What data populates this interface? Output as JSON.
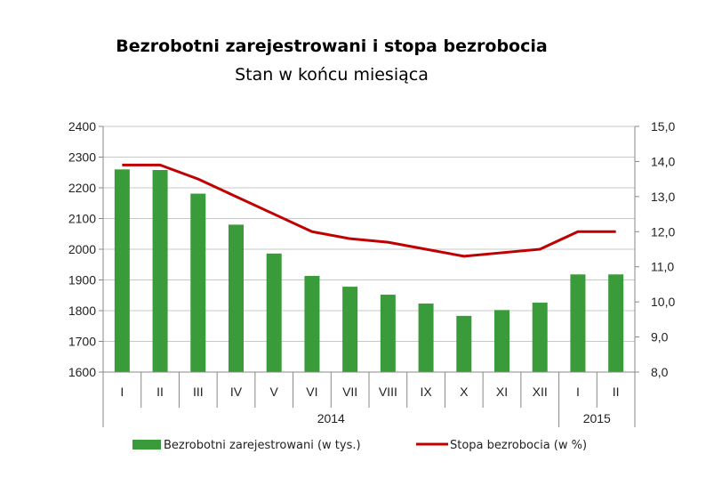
{
  "chart_data": {
    "type": "bar+line",
    "title": "Bezrobotni zarejestrowani i stopa bezrobocia",
    "subtitle": "Stan w końcu miesiąca",
    "categories": [
      "I",
      "II",
      "III",
      "IV",
      "V",
      "VI",
      "VII",
      "VIII",
      "IX",
      "X",
      "XI",
      "XII",
      "I",
      "II"
    ],
    "year_groups": [
      {
        "label": "2014",
        "count": 12
      },
      {
        "label": "2015",
        "count": 2
      }
    ],
    "series": [
      {
        "name": "Bezrobotni zarejestrowani  (w tys.)",
        "type": "bar",
        "axis": "left",
        "color": "#3a9b3a",
        "values": [
          2260,
          2258,
          2181,
          2080,
          1986,
          1913,
          1878,
          1852,
          1823,
          1783,
          1802,
          1826,
          1918,
          1918
        ]
      },
      {
        "name": "Stopa bezrobocia  (w %)",
        "type": "line",
        "axis": "right",
        "color": "#c00000",
        "values": [
          13.9,
          13.9,
          13.5,
          13.0,
          12.5,
          12.0,
          11.8,
          11.7,
          11.5,
          11.3,
          11.4,
          11.5,
          12.0,
          12.0
        ]
      }
    ],
    "y_left": {
      "min": 1600,
      "max": 2400,
      "step": 100,
      "ticks": [
        "1600",
        "1700",
        "1800",
        "1900",
        "2000",
        "2100",
        "2200",
        "2300",
        "2400"
      ]
    },
    "y_right": {
      "min": 8.0,
      "max": 15.0,
      "step": 1.0,
      "ticks": [
        "8,0",
        "9,0",
        "10,0",
        "11,0",
        "12,0",
        "13,0",
        "14,0",
        "15,0"
      ]
    },
    "grid": true,
    "legend_position": "bottom"
  }
}
